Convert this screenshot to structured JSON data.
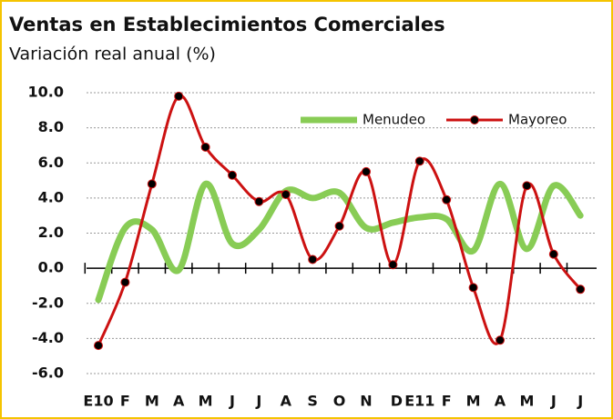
{
  "chart_data": {
    "type": "line",
    "title": "Ventas en Establecimientos Comerciales",
    "subtitle": "Variación real anual (%)",
    "categories": [
      "E10",
      "F",
      "M",
      "A",
      "M",
      "J",
      "J",
      "A",
      "S",
      "O",
      "N",
      "D",
      "E11",
      "F",
      "M",
      "A",
      "M",
      "J",
      "J"
    ],
    "series": [
      {
        "name": "Menudeo",
        "color": "#88cc55",
        "values": [
          -1.8,
          2.3,
          2.2,
          -0.1,
          4.8,
          1.4,
          2.2,
          4.4,
          4.0,
          4.3,
          2.3,
          2.6,
          2.9,
          2.8,
          1.0,
          4.8,
          1.1,
          4.7,
          3.0
        ]
      },
      {
        "name": "Mayoreo",
        "color": "#cc1111",
        "values": [
          -4.4,
          -0.8,
          4.8,
          9.8,
          6.9,
          5.3,
          3.8,
          4.2,
          0.5,
          2.4,
          5.5,
          0.2,
          6.1,
          3.9,
          -1.1,
          -4.1,
          4.7,
          0.8,
          -1.2
        ]
      }
    ],
    "ylim": [
      -6,
      10
    ],
    "yticks": [
      {
        "value": 10,
        "label": "10.0"
      },
      {
        "value": 8,
        "label": "8.0"
      },
      {
        "value": 6,
        "label": "6.0"
      },
      {
        "value": 4,
        "label": "4.0"
      },
      {
        "value": 2,
        "label": "2.0"
      },
      {
        "value": 0,
        "label": "0.0"
      },
      {
        "value": -2,
        "label": "-2.0"
      },
      {
        "value": -4,
        "label": "-4.0"
      },
      {
        "value": -6,
        "label": "-6.0"
      }
    ],
    "grid": true,
    "legend": "top-right"
  }
}
